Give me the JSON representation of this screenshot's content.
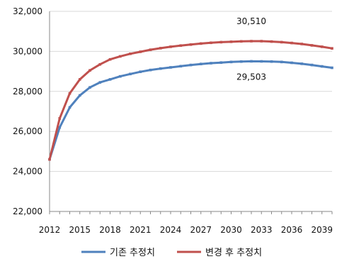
{
  "chart_data": {
    "type": "line",
    "title": "",
    "xlabel": "",
    "ylabel": "",
    "x": [
      2012,
      2013,
      2014,
      2015,
      2016,
      2017,
      2018,
      2019,
      2020,
      2021,
      2022,
      2023,
      2024,
      2025,
      2026,
      2027,
      2028,
      2029,
      2030,
      2031,
      2032,
      2033,
      2034,
      2035,
      2036,
      2037,
      2038,
      2039,
      2040
    ],
    "x_tick_labels": [
      "2012",
      "2015",
      "2018",
      "2021",
      "2024",
      "2027",
      "2030",
      "2033",
      "2036",
      "2039"
    ],
    "ylim": [
      22000,
      32000
    ],
    "y_tick_labels": [
      "22,000",
      "24,000",
      "26,000",
      "28,000",
      "30,000",
      "32,000"
    ],
    "y_ticks": [
      22000,
      24000,
      26000,
      28000,
      30000,
      32000
    ],
    "grid": true,
    "legend_position": "bottom",
    "series": [
      {
        "name": "기존 추정치",
        "color": "#4f81bd",
        "values": [
          24600,
          26200,
          27200,
          27800,
          28200,
          28450,
          28600,
          28750,
          28870,
          28980,
          29070,
          29140,
          29200,
          29260,
          29320,
          29370,
          29410,
          29440,
          29470,
          29490,
          29503,
          29500,
          29490,
          29470,
          29430,
          29380,
          29320,
          29250,
          29180
        ]
      },
      {
        "name": "변경 후 추정치",
        "color": "#c0504d",
        "values": [
          24600,
          26650,
          27900,
          28600,
          29050,
          29350,
          29600,
          29750,
          29880,
          29980,
          30080,
          30160,
          30230,
          30290,
          30340,
          30390,
          30430,
          30460,
          30480,
          30500,
          30510,
          30510,
          30490,
          30460,
          30420,
          30370,
          30300,
          30230,
          30150
        ]
      }
    ],
    "annotations": [
      {
        "text": "30,510",
        "x": 2032,
        "y": 30510
      },
      {
        "text": "29,503",
        "x": 2032,
        "y": 29503
      }
    ]
  }
}
